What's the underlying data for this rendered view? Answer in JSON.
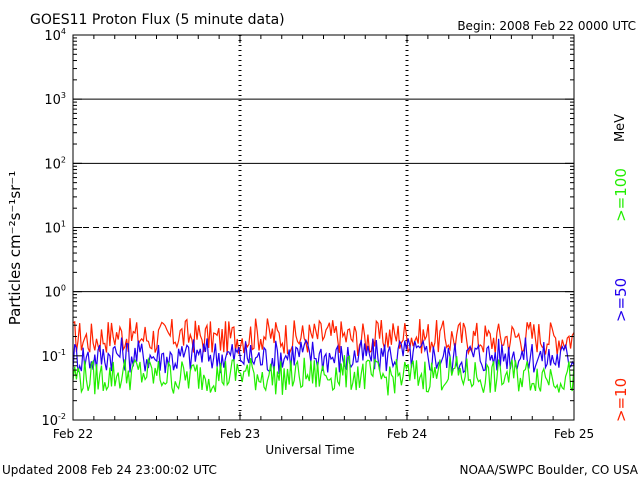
{
  "header": {
    "title": "GOES11 Proton Flux (5 minute data)",
    "begin": "Begin: 2008 Feb 22 0000 UTC"
  },
  "footer": {
    "updated": "Updated 2008 Feb 24 23:00:02 UTC",
    "credit": "NOAA/SWPC Boulder, CO USA"
  },
  "chart_data": {
    "type": "line",
    "title": "GOES11 Proton Flux (5 minute data)",
    "xlabel": "Universal Time",
    "ylabel": "Particles cm⁻²s⁻¹sr⁻¹",
    "yscale": "log",
    "ylim": [
      0.01,
      10000
    ],
    "xlim": [
      "Feb 22",
      "Feb 25"
    ],
    "x_ticks": [
      "Feb 22",
      "Feb 23",
      "Feb 24",
      "Feb 25"
    ],
    "y_ticks": [
      {
        "base": "10",
        "exp": "-2"
      },
      {
        "base": "10",
        "exp": "-1"
      },
      {
        "base": "10",
        "exp": "0"
      },
      {
        "base": "10",
        "exp": "1"
      },
      {
        "base": "10",
        "exp": "2"
      },
      {
        "base": "10",
        "exp": "3"
      },
      {
        "base": "10",
        "exp": "4"
      }
    ],
    "reference_lines": [
      {
        "value": 1,
        "style": "solid"
      },
      {
        "value": 10,
        "style": "dashed"
      },
      {
        "value": 100,
        "style": "solid"
      },
      {
        "value": 1000,
        "style": "solid"
      }
    ],
    "grid": "vertical dashed at day boundaries",
    "legend_unit": "MeV",
    "series": [
      {
        "name": ">=10",
        "color": "#ff2200",
        "values": [
          0.2,
          0.18,
          0.22,
          0.2,
          0.19,
          0.21,
          0.2,
          0.18,
          0.2,
          0.22,
          0.2,
          0.19,
          0.21,
          0.2,
          0.18,
          0.2,
          0.21,
          0.2,
          0.19,
          0.2,
          0.18,
          0.2,
          0.21,
          0.19,
          0.2
        ]
      },
      {
        "name": ">=50",
        "color": "#2200ee",
        "values": [
          0.1,
          0.09,
          0.11,
          0.1,
          0.1,
          0.09,
          0.11,
          0.1,
          0.1,
          0.09,
          0.1,
          0.11,
          0.1,
          0.09,
          0.1,
          0.1,
          0.11,
          0.1,
          0.09,
          0.1,
          0.1,
          0.11,
          0.1,
          0.09,
          0.1
        ]
      },
      {
        "name": ">=100",
        "color": "#22ee00",
        "values": [
          0.05,
          0.045,
          0.05,
          0.055,
          0.05,
          0.045,
          0.05,
          0.05,
          0.055,
          0.05,
          0.045,
          0.05,
          0.05,
          0.055,
          0.05,
          0.045,
          0.05,
          0.05,
          0.055,
          0.05,
          0.045,
          0.05,
          0.05,
          0.05,
          0.045
        ]
      }
    ]
  }
}
